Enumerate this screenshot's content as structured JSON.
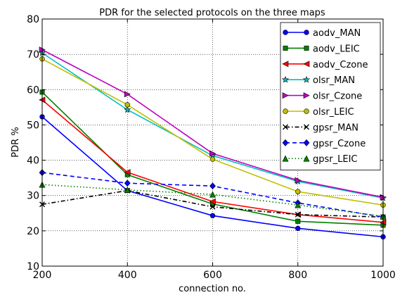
{
  "chart_data": {
    "type": "line",
    "title": "PDR for the selected protocols on the three maps",
    "xlabel": "connection no.",
    "ylabel": "PDR %",
    "x": [
      200,
      400,
      600,
      800,
      1000
    ],
    "xlim": [
      200,
      1000
    ],
    "ylim": [
      10,
      80
    ],
    "xticks": [
      200,
      400,
      600,
      800,
      1000
    ],
    "yticks": [
      10,
      20,
      30,
      40,
      50,
      60,
      70,
      80
    ],
    "grid": true,
    "legend_position": "top-right",
    "series": [
      {
        "name": "aodv_MAN",
        "color": "#0000ff",
        "dash": "solid",
        "marker": "circle",
        "values": [
          52.3,
          31.4,
          24.3,
          20.7,
          18.3
        ]
      },
      {
        "name": "aodv_LEIC",
        "color": "#008000",
        "dash": "solid",
        "marker": "square",
        "values": [
          59.3,
          35.9,
          27.6,
          22.7,
          21.6
        ]
      },
      {
        "name": "aodv_Czone",
        "color": "#ff0000",
        "dash": "solid",
        "marker": "triangle-left",
        "values": [
          57.1,
          36.6,
          28.3,
          24.6,
          22.4
        ]
      },
      {
        "name": "olsr_MAN",
        "color": "#00bfbf",
        "dash": "solid",
        "marker": "star",
        "values": [
          70.4,
          54.3,
          41.3,
          34.0,
          29.3
        ]
      },
      {
        "name": "olsr_Czone",
        "color": "#bf00bf",
        "dash": "solid",
        "marker": "triangle-right",
        "values": [
          71.3,
          58.7,
          41.9,
          34.3,
          29.5
        ]
      },
      {
        "name": "olsr_LEIC",
        "color": "#bfbf00",
        "dash": "solid",
        "marker": "circle",
        "values": [
          68.7,
          55.7,
          40.3,
          31.1,
          27.3
        ]
      },
      {
        "name": "gpsr_MAN",
        "color": "#000000",
        "dash": "dashdot",
        "marker": "x",
        "values": [
          27.5,
          31.4,
          26.8,
          24.6,
          23.9
        ]
      },
      {
        "name": "gpsr_Czone",
        "color": "#0000ff",
        "dash": "dashed",
        "marker": "diamond",
        "values": [
          36.5,
          33.5,
          32.7,
          27.9,
          23.9
        ]
      },
      {
        "name": "gpsr_LEIC",
        "color": "#008000",
        "dash": "dotted",
        "marker": "triangle-up",
        "values": [
          33.1,
          31.6,
          30.3,
          27.3,
          24.1
        ]
      }
    ]
  }
}
